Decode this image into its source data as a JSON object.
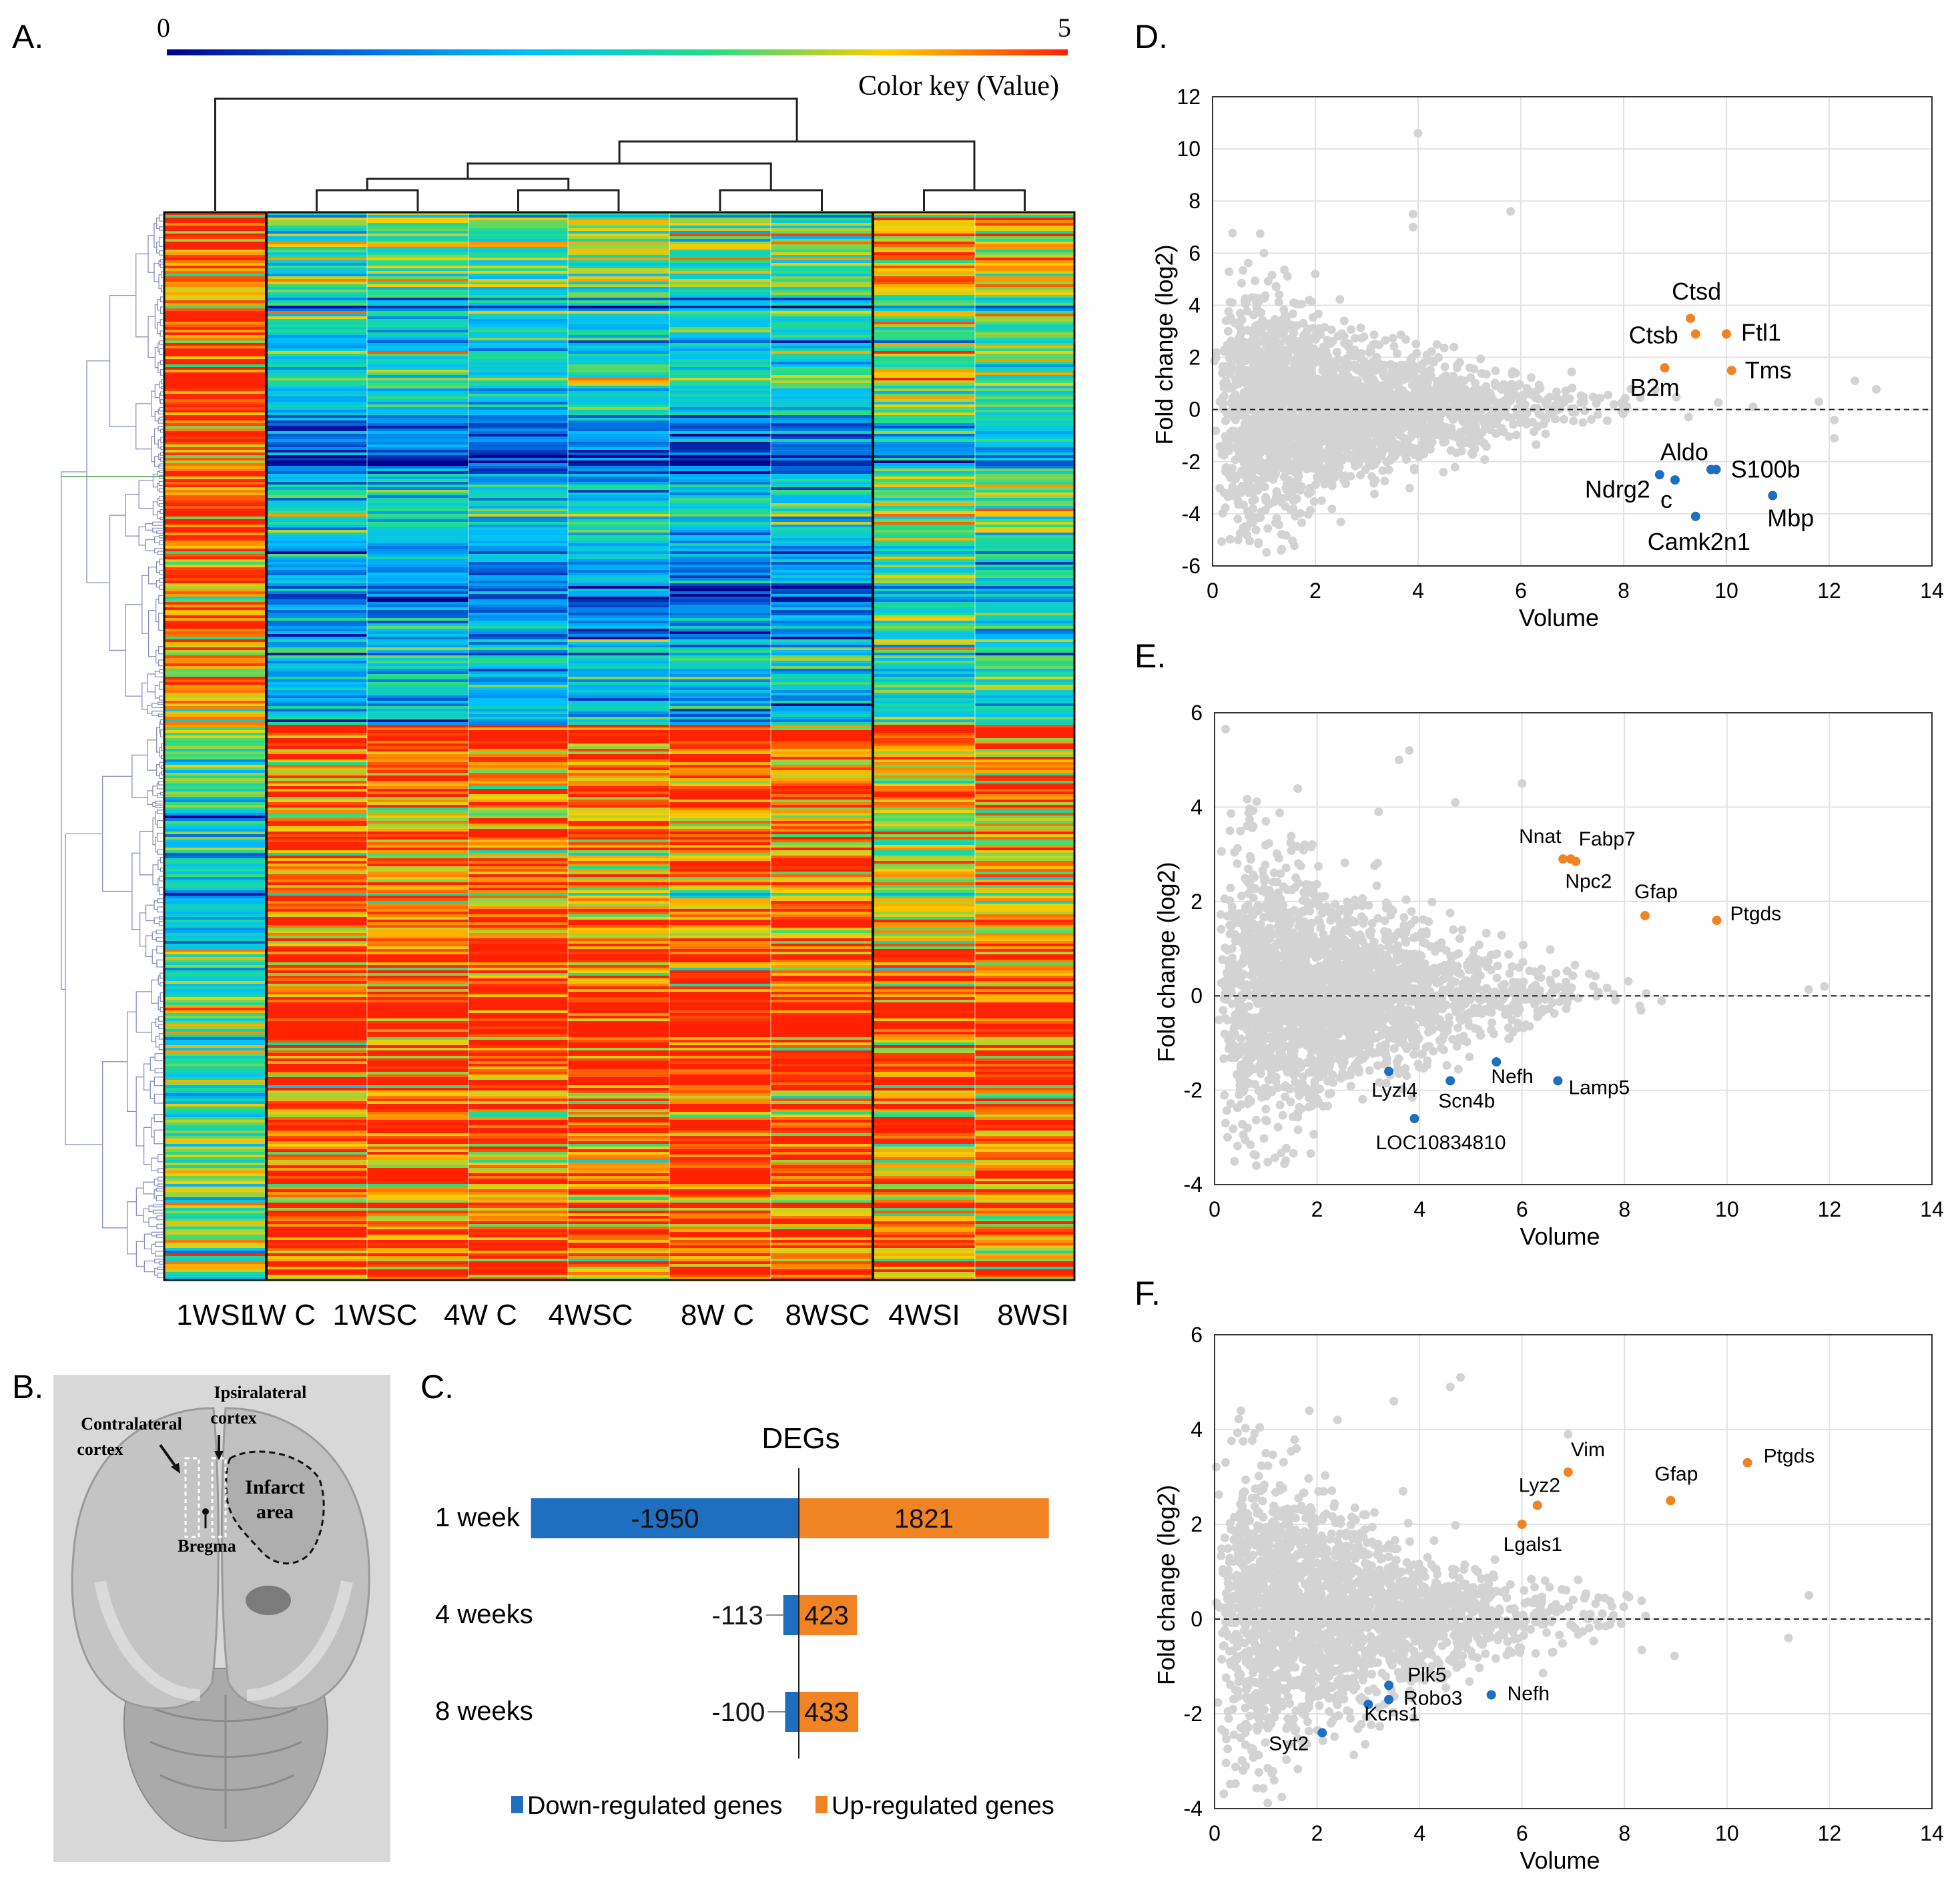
{
  "panels": {
    "a": "A.",
    "b": "B.",
    "c": "C.",
    "d": "D.",
    "e": "E.",
    "f": "F."
  },
  "colors": {
    "up": "#f08424",
    "down": "#1f6fc0",
    "scatter": "#d3d3d3",
    "heat_stops": [
      "#00008b",
      "#0066dd",
      "#00bfff",
      "#22dd88",
      "#ffcc00",
      "#ff2200"
    ]
  },
  "heatmap": {
    "color_key_min": "0",
    "color_key_max": "5",
    "color_key_title": "Color key (Value)",
    "samples": [
      "1WSI",
      "1W C",
      "1WSC",
      "4W C",
      "4WSC",
      "8W C",
      "8WSC",
      "4WSI",
      "8WSI"
    ]
  },
  "brain": {
    "contralateral": "Contralateral",
    "contralateral2": "cortex",
    "ipsilateral": "Ipsiralateral",
    "ipsilateral2": "cortex",
    "infarct": "Infarct",
    "infarct2": "area",
    "bregma": "Bregma"
  },
  "chart_data": [
    {
      "id": "C",
      "type": "bar",
      "title": "DEGs",
      "categories": [
        "1 week",
        "4 weeks",
        "8 weeks"
      ],
      "series": [
        {
          "name": "Down-regulated genes",
          "values": [
            -1950,
            -113,
            -100
          ]
        },
        {
          "name": "Up-regulated genes",
          "values": [
            1821,
            423,
            433
          ]
        }
      ],
      "down_labels": [
        "-1950",
        "-113",
        "-100"
      ],
      "up_labels": [
        "1821",
        "423",
        "433"
      ],
      "legend": [
        "Down-regulated genes",
        "Up-regulated genes"
      ]
    },
    {
      "id": "D",
      "type": "scatter",
      "xlabel": "Volume",
      "ylabel": "Fold change (log2)",
      "xlim": [
        0,
        14
      ],
      "ylim": [
        -6,
        12
      ],
      "xticks": [
        0,
        2,
        4,
        6,
        8,
        10,
        12,
        14
      ],
      "yticks": [
        -6,
        -4,
        -2,
        0,
        2,
        4,
        6,
        8,
        10,
        12
      ],
      "up": [
        {
          "label": "Ctsd",
          "x": 9.3,
          "y": 3.5
        },
        {
          "label": "Ctsb",
          "x": 9.4,
          "y": 2.9
        },
        {
          "label": "Ftl1",
          "x": 10.0,
          "y": 2.9
        },
        {
          "label": "Tms",
          "x": 10.1,
          "y": 1.5
        },
        {
          "label": "B2m",
          "x": 8.8,
          "y": 1.6
        }
      ],
      "down": [
        {
          "label": "Aldo",
          "x": 9.7,
          "y": -2.3
        },
        {
          "label": "S100b",
          "x": 9.8,
          "y": -2.3
        },
        {
          "label": "Ndrg2",
          "x": 8.7,
          "y": -2.5
        },
        {
          "label": "c",
          "x": 9.0,
          "y": -2.7
        },
        {
          "label": "Mbp",
          "x": 10.9,
          "y": -3.3
        },
        {
          "label": "Camk2n1",
          "x": 9.4,
          "y": -4.1
        }
      ],
      "outliers": [
        [
          4.0,
          10.6
        ],
        [
          3.9,
          7.0
        ],
        [
          3.9,
          7.5
        ],
        [
          5.8,
          7.6
        ],
        [
          1.0,
          6.0
        ],
        [
          2.0,
          5.2
        ],
        [
          12.5,
          1.1
        ],
        [
          12.1,
          -0.4
        ],
        [
          11.8,
          0.3
        ],
        [
          12.1,
          -1.1
        ]
      ]
    },
    {
      "id": "E",
      "type": "scatter",
      "xlabel": "Volume",
      "ylabel": "Fold change (log2)",
      "xlim": [
        0,
        14
      ],
      "ylim": [
        -4,
        6
      ],
      "xticks": [
        0,
        2,
        4,
        6,
        8,
        10,
        12,
        14
      ],
      "yticks": [
        -4,
        -2,
        0,
        2,
        4,
        6
      ],
      "up": [
        {
          "label": "Nnat",
          "x": 6.8,
          "y": 2.9
        },
        {
          "label": "Fabp7",
          "x": 6.95,
          "y": 2.9
        },
        {
          "label": "Npc2",
          "x": 7.05,
          "y": 2.85
        },
        {
          "label": "Gfap",
          "x": 8.4,
          "y": 1.7
        },
        {
          "label": "Ptgds",
          "x": 9.8,
          "y": 1.6
        }
      ],
      "down": [
        {
          "label": "Lyzl4",
          "x": 3.4,
          "y": -1.6
        },
        {
          "label": "Scn4b",
          "x": 4.6,
          "y": -1.8
        },
        {
          "label": "Nefh",
          "x": 5.5,
          "y": -1.4
        },
        {
          "label": "Lamp5",
          "x": 6.7,
          "y": -1.8
        },
        {
          "label": "LOC10834810",
          "x": 3.9,
          "y": -2.6
        }
      ],
      "outliers": [
        [
          3.8,
          5.2
        ],
        [
          3.6,
          5.0
        ],
        [
          6.0,
          4.5
        ],
        [
          4.7,
          4.1
        ],
        [
          3.2,
          3.9
        ],
        [
          1.0,
          3.7
        ],
        [
          0.3,
          3.5
        ],
        [
          11.9,
          0.2
        ],
        [
          1.0,
          -2.4
        ],
        [
          0.5,
          -2.0
        ]
      ]
    },
    {
      "id": "F",
      "type": "scatter",
      "xlabel": "Volume",
      "ylabel": "Fold change (log2)",
      "xlim": [
        0,
        14
      ],
      "ylim": [
        -4,
        6
      ],
      "xticks": [
        0,
        2,
        4,
        6,
        8,
        10,
        12,
        14
      ],
      "yticks": [
        -4,
        -2,
        0,
        2,
        4,
        6
      ],
      "up": [
        {
          "label": "Vim",
          "x": 6.9,
          "y": 3.1
        },
        {
          "label": "Lyz2",
          "x": 6.3,
          "y": 2.4
        },
        {
          "label": "Gfap",
          "x": 8.9,
          "y": 2.5
        },
        {
          "label": "Ptgds",
          "x": 10.4,
          "y": 3.3
        },
        {
          "label": "Lgals1",
          "x": 6.0,
          "y": 2.0
        }
      ],
      "down": [
        {
          "label": "Plk5",
          "x": 3.4,
          "y": -1.4
        },
        {
          "label": "Robo3",
          "x": 3.4,
          "y": -1.7
        },
        {
          "label": "Nefh",
          "x": 5.4,
          "y": -1.6
        },
        {
          "label": "Kcns1",
          "x": 3.0,
          "y": -1.8
        },
        {
          "label": "Syt2",
          "x": 2.1,
          "y": -2.4
        }
      ],
      "outliers": [
        [
          4.6,
          4.9
        ],
        [
          4.8,
          5.1
        ],
        [
          3.5,
          4.6
        ],
        [
          2.4,
          4.2
        ],
        [
          1.6,
          3.6
        ],
        [
          1.0,
          3.5
        ],
        [
          6.9,
          3.9
        ],
        [
          11.6,
          0.5
        ],
        [
          11.2,
          -0.4
        ],
        [
          0.6,
          -2.4
        ]
      ]
    }
  ]
}
